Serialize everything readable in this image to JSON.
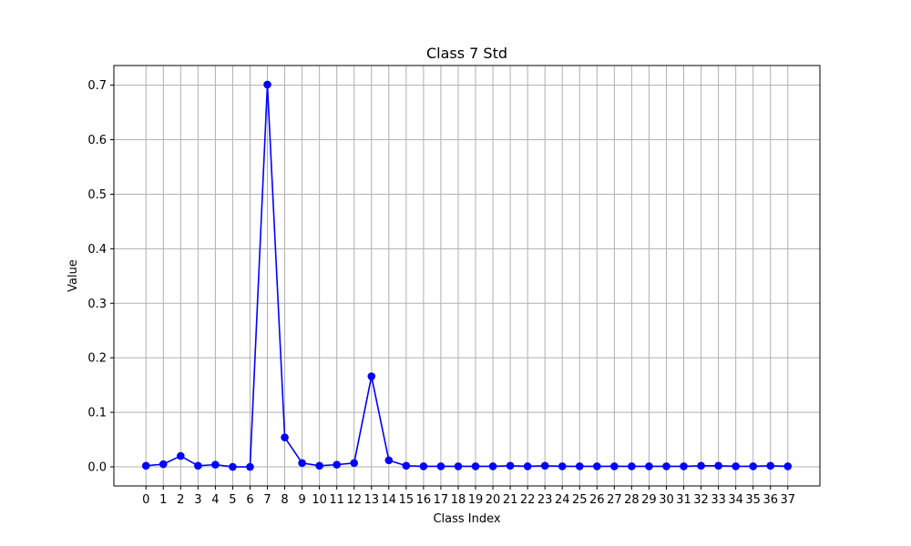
{
  "chart_data": {
    "type": "line",
    "title": "Class 7 Std",
    "xlabel": "Class Index",
    "ylabel": "Value",
    "x": [
      0,
      1,
      2,
      3,
      4,
      5,
      6,
      7,
      8,
      9,
      10,
      11,
      12,
      13,
      14,
      15,
      16,
      17,
      18,
      19,
      20,
      21,
      22,
      23,
      24,
      25,
      26,
      27,
      28,
      29,
      30,
      31,
      32,
      33,
      34,
      35,
      36,
      37
    ],
    "xticks": [
      "0",
      "1",
      "2",
      "3",
      "4",
      "5",
      "6",
      "7",
      "8",
      "9",
      "10",
      "11",
      "12",
      "13",
      "14",
      "15",
      "16",
      "17",
      "18",
      "19",
      "20",
      "21",
      "22",
      "23",
      "24",
      "25",
      "26",
      "27",
      "28",
      "29",
      "30",
      "31",
      "32",
      "33",
      "34",
      "35",
      "36",
      "37"
    ],
    "series": [
      {
        "name": "Class 7 Std",
        "values": [
          0.002,
          0.005,
          0.02,
          0.002,
          0.004,
          0.0,
          0.0,
          0.701,
          0.054,
          0.007,
          0.002,
          0.004,
          0.007,
          0.166,
          0.012,
          0.002,
          0.001,
          0.001,
          0.001,
          0.001,
          0.001,
          0.002,
          0.001,
          0.002,
          0.001,
          0.001,
          0.001,
          0.001,
          0.001,
          0.001,
          0.001,
          0.001,
          0.002,
          0.002,
          0.001,
          0.001,
          0.002,
          0.001
        ]
      }
    ],
    "yticks": [
      0.0,
      0.1,
      0.2,
      0.3,
      0.4,
      0.5,
      0.6,
      0.7
    ],
    "ytick_labels": [
      "0.0",
      "0.1",
      "0.2",
      "0.3",
      "0.4",
      "0.5",
      "0.6",
      "0.7"
    ],
    "xlim": [
      -1.85,
      38.85
    ],
    "ylim": [
      -0.035,
      0.736
    ],
    "grid": true,
    "colors": {
      "line": "#0000ff",
      "grid": "#b0b0b0",
      "axes": "#000000"
    }
  }
}
